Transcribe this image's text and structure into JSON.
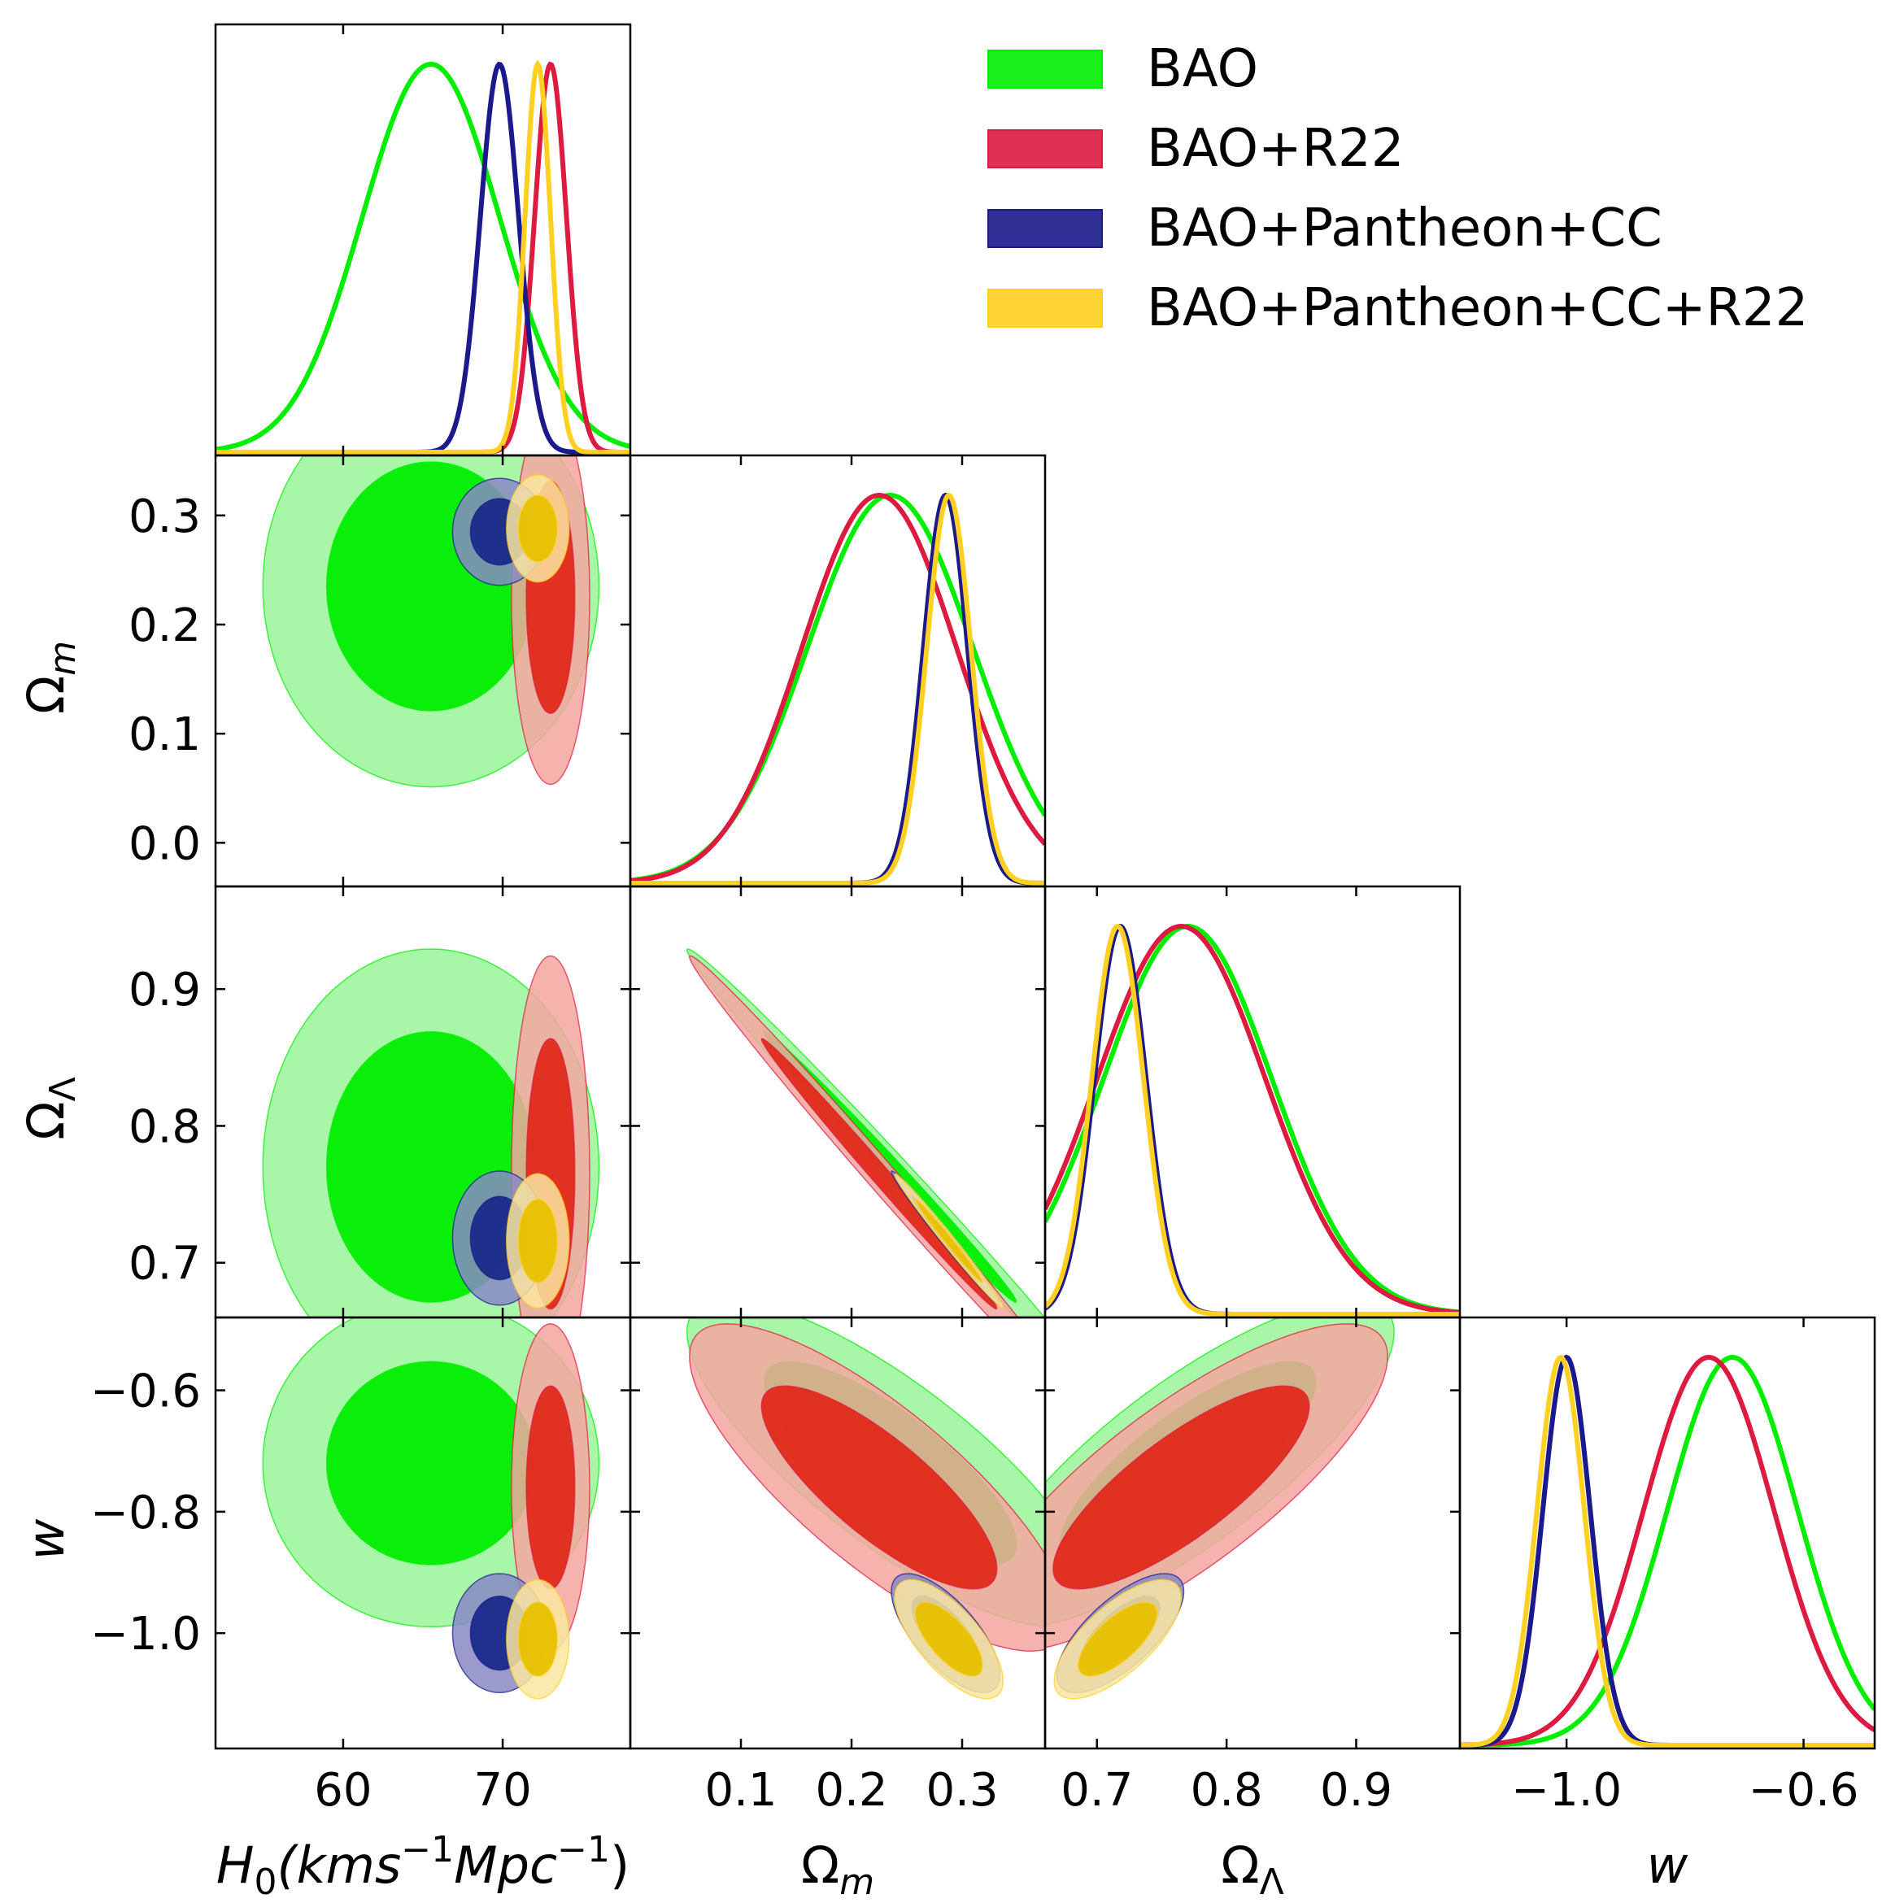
{
  "chart_data": {
    "type": "corner",
    "params": [
      {
        "key": "H0",
        "label": "H0(kms−1Mpc−1)",
        "base": "H",
        "sub": "0",
        "rest": "(kms",
        "sup1": "−1",
        "mid": "Mpc",
        "sup2": "−1",
        "tail": ")",
        "range": [
          52,
          78
        ],
        "ticks": [
          60,
          70
        ]
      },
      {
        "key": "Om",
        "label": "Ωm",
        "base": "Ω",
        "sub": "m",
        "range": [
          0.0,
          0.375
        ],
        "ticks": [
          0.1,
          0.2,
          0.3
        ],
        "yrange": [
          -0.04,
          0.355
        ],
        "yticks": [
          0.0,
          0.1,
          0.2,
          0.3
        ]
      },
      {
        "key": "OL",
        "label": "ΩΛ",
        "base": "Ω",
        "sub": "Λ",
        "range": [
          0.66,
          0.98
        ],
        "ticks": [
          0.7,
          0.8,
          0.9
        ],
        "yrange": [
          0.66,
          0.975
        ],
        "yticks": [
          0.7,
          0.8,
          0.9
        ]
      },
      {
        "key": "w",
        "label": "w",
        "base": "w",
        "range": [
          -1.18,
          -0.48
        ],
        "ticks": [
          -1.0,
          -0.6
        ],
        "yrange": [
          -1.19,
          -0.48
        ],
        "yticks": [
          -1.0,
          -0.8,
          -0.6
        ]
      }
    ],
    "tick_labels": {
      "H0": [
        "60",
        "70"
      ],
      "Om_x": [
        "0.1",
        "0.2",
        "0.3"
      ],
      "Om_y": [
        "0.0",
        "0.1",
        "0.2",
        "0.3"
      ],
      "OL": [
        "0.7",
        "0.8",
        "0.9"
      ],
      "w_x": [
        "−1.0",
        "−0.6"
      ],
      "w_y": [
        "−1.0",
        "−0.8",
        "−0.6"
      ]
    },
    "legend_position": "top-right",
    "series": [
      {
        "name": "BAO",
        "line": "#00ee00",
        "fill_outer": "#99f599",
        "fill_inner": "#00ee00",
        "mean": {
          "H0": 65.5,
          "Om": 0.235,
          "OL": 0.77,
          "w": -0.72
        },
        "sd": {
          "H0": 4.3,
          "Om": 0.075,
          "OL": 0.065,
          "w": 0.11
        },
        "corr": {
          "H0_Om": 0.0,
          "H0_OL": 0.0,
          "Om_OL": -0.995,
          "H0_w": 0.0,
          "Om_w": -0.8,
          "OL_w": 0.8
        }
      },
      {
        "name": "BAO+R22",
        "line": "#dd1a40",
        "fill_outer": "#f4a6a0",
        "fill_inner": "#e02a1a",
        "mean": {
          "H0": 73.0,
          "Om": 0.225,
          "OL": 0.765,
          "w": -0.76
        },
        "sd": {
          "H0": 1.0,
          "Om": 0.07,
          "OL": 0.065,
          "w": 0.11
        },
        "corr": {
          "H0_Om": 0.0,
          "H0_OL": 0.0,
          "Om_OL": -0.995,
          "H0_w": 0.0,
          "Om_w": -0.8,
          "OL_w": 0.8
        }
      },
      {
        "name": "BAO+Pantheon+CC",
        "line": "#1a1a8c",
        "fill_outer": "#8888c4",
        "fill_inner": "#1a2a8a",
        "mean": {
          "H0": 69.8,
          "Om": 0.285,
          "OL": 0.718,
          "w": -1.0
        },
        "sd": {
          "H0": 1.2,
          "Om": 0.02,
          "OL": 0.02,
          "w": 0.04
        },
        "corr": {
          "H0_Om": 0.0,
          "H0_OL": 0.0,
          "Om_OL": -0.99,
          "H0_w": 0.0,
          "Om_w": -0.7,
          "OL_w": 0.7
        }
      },
      {
        "name": "BAO+Pantheon+CC+R22",
        "line": "#ffd020",
        "fill_outer": "#fae6a0",
        "fill_inner": "#e8c000",
        "mean": {
          "H0": 72.2,
          "Om": 0.288,
          "OL": 0.716,
          "w": -1.01
        },
        "sd": {
          "H0": 0.8,
          "Om": 0.02,
          "OL": 0.02,
          "w": 0.04
        },
        "corr": {
          "H0_Om": 0.0,
          "H0_OL": 0.0,
          "Om_OL": -0.99,
          "H0_w": 0.0,
          "Om_w": -0.7,
          "OL_w": 0.7
        }
      }
    ]
  }
}
